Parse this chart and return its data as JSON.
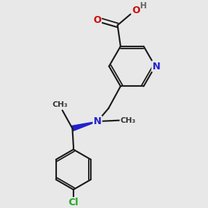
{
  "background_color": "#e8e8e8",
  "atom_colors": {
    "C": "#1a1a1a",
    "N": "#2222cc",
    "O": "#cc1111",
    "Cl": "#22aa22",
    "H": "#666666"
  },
  "bond_color": "#1a1a1a",
  "bond_width": 1.6,
  "fig_size": [
    3.0,
    3.0
  ],
  "dpi": 100,
  "xlim": [
    0,
    10
  ],
  "ylim": [
    0,
    10
  ]
}
